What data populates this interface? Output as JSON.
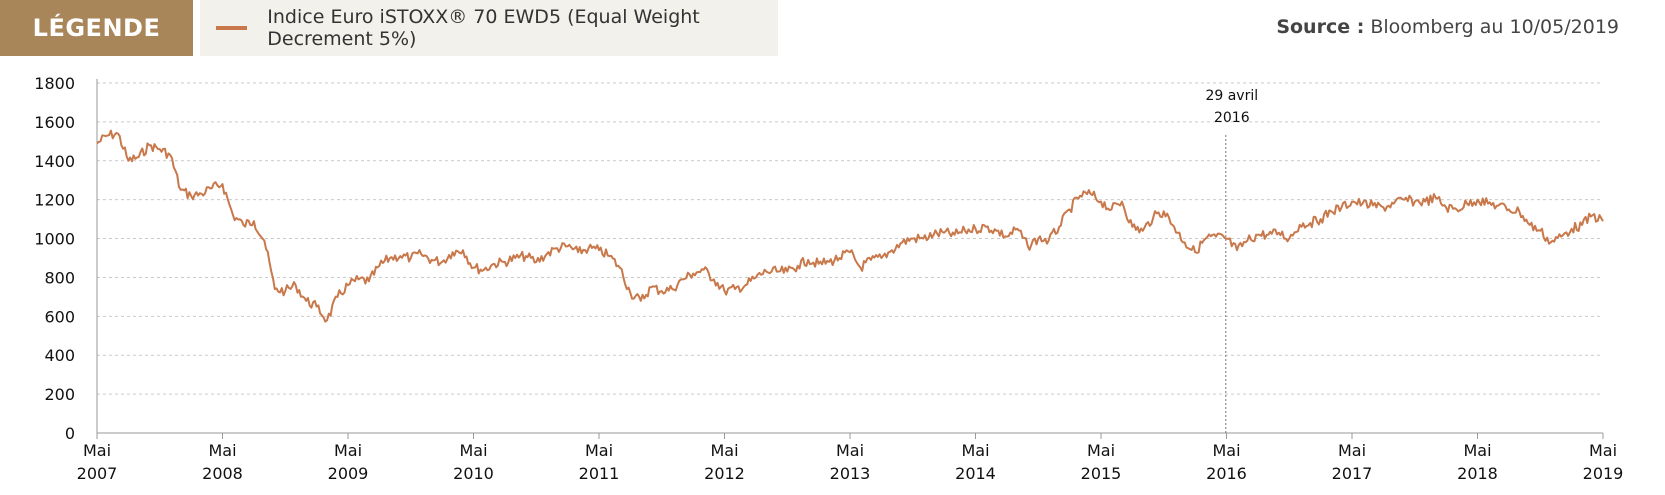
{
  "legend": {
    "tag": "LÉGENDE",
    "series_label": "Indice Euro iSTOXX® 70 EWD5  (Equal Weight Decrement 5%)"
  },
  "source": {
    "prefix": "Source :",
    "text": "Bloomberg au 10/05/2019"
  },
  "colors": {
    "series": "#c8784a",
    "tag_bg": "#a8865a",
    "grid": "#c9c9c9",
    "axis": "#999999"
  },
  "chart_data": {
    "type": "line",
    "title": "",
    "xlabel": "",
    "ylabel": "",
    "ylim": [
      0,
      1800
    ],
    "yticks": [
      "0",
      "200",
      "400",
      "600",
      "800",
      "1000",
      "1200",
      "1400",
      "1600",
      "1800"
    ],
    "xlim": [
      "2007-05",
      "2019-05"
    ],
    "xticks": [
      {
        "month": "Mai",
        "year": "2007"
      },
      {
        "month": "Mai",
        "year": "2008"
      },
      {
        "month": "Mai",
        "year": "2009"
      },
      {
        "month": "Mai",
        "year": "2010"
      },
      {
        "month": "Mai",
        "year": "2011"
      },
      {
        "month": "Mai",
        "year": "2012"
      },
      {
        "month": "Mai",
        "year": "2013"
      },
      {
        "month": "Mai",
        "year": "2014"
      },
      {
        "month": "Mai",
        "year": "2015"
      },
      {
        "month": "Mai",
        "year": "2016"
      },
      {
        "month": "Mai",
        "year": "2017"
      },
      {
        "month": "Mai",
        "year": "2018"
      },
      {
        "month": "Mai",
        "year": "2019"
      }
    ],
    "grid": true,
    "annotation": {
      "date": "2016-04-29",
      "line1": "29 avril",
      "line2": "2016"
    },
    "series": [
      {
        "name": "Indice Euro iSTOXX® 70 EWD5  (Equal Weight Decrement 5%)",
        "points": [
          [
            "2007-05",
            1490
          ],
          [
            "2007-06",
            1530
          ],
          [
            "2007-07",
            1540
          ],
          [
            "2007-08",
            1400
          ],
          [
            "2007-09",
            1420
          ],
          [
            "2007-10",
            1480
          ],
          [
            "2007-11",
            1460
          ],
          [
            "2007-12",
            1430
          ],
          [
            "2008-01",
            1250
          ],
          [
            "2008-02",
            1220
          ],
          [
            "2008-03",
            1230
          ],
          [
            "2008-04",
            1260
          ],
          [
            "2008-05",
            1280
          ],
          [
            "2008-06",
            1120
          ],
          [
            "2008-07",
            1070
          ],
          [
            "2008-08",
            1090
          ],
          [
            "2008-09",
            990
          ],
          [
            "2008-10",
            740
          ],
          [
            "2008-11",
            730
          ],
          [
            "2008-12",
            760
          ],
          [
            "2009-01",
            680
          ],
          [
            "2009-02",
            650
          ],
          [
            "2009-03",
            580
          ],
          [
            "2009-04",
            700
          ],
          [
            "2009-05",
            760
          ],
          [
            "2009-06",
            790
          ],
          [
            "2009-07",
            780
          ],
          [
            "2009-08",
            860
          ],
          [
            "2009-09",
            900
          ],
          [
            "2009-10",
            910
          ],
          [
            "2009-11",
            900
          ],
          [
            "2009-12",
            920
          ],
          [
            "2010-01",
            890
          ],
          [
            "2010-02",
            880
          ],
          [
            "2010-03",
            930
          ],
          [
            "2010-04",
            940
          ],
          [
            "2010-05",
            850
          ],
          [
            "2010-06",
            840
          ],
          [
            "2010-07",
            870
          ],
          [
            "2010-08",
            880
          ],
          [
            "2010-09",
            900
          ],
          [
            "2010-10",
            910
          ],
          [
            "2010-11",
            880
          ],
          [
            "2010-12",
            920
          ],
          [
            "2011-01",
            950
          ],
          [
            "2011-02",
            960
          ],
          [
            "2011-03",
            930
          ],
          [
            "2011-04",
            950
          ],
          [
            "2011-05",
            940
          ],
          [
            "2011-06",
            910
          ],
          [
            "2011-07",
            850
          ],
          [
            "2011-08",
            720
          ],
          [
            "2011-09",
            680
          ],
          [
            "2011-10",
            750
          ],
          [
            "2011-11",
            730
          ],
          [
            "2011-12",
            740
          ],
          [
            "2012-01",
            790
          ],
          [
            "2012-02",
            820
          ],
          [
            "2012-03",
            840
          ],
          [
            "2012-04",
            790
          ],
          [
            "2012-05",
            730
          ],
          [
            "2012-06",
            740
          ],
          [
            "2012-07",
            760
          ],
          [
            "2012-08",
            800
          ],
          [
            "2012-09",
            830
          ],
          [
            "2012-10",
            830
          ],
          [
            "2012-11",
            830
          ],
          [
            "2012-12",
            860
          ],
          [
            "2013-01",
            890
          ],
          [
            "2013-02",
            870
          ],
          [
            "2013-03",
            880
          ],
          [
            "2013-04",
            900
          ],
          [
            "2013-05",
            930
          ],
          [
            "2013-06",
            850
          ],
          [
            "2013-07",
            890
          ],
          [
            "2013-08",
            900
          ],
          [
            "2013-09",
            940
          ],
          [
            "2013-10",
            980
          ],
          [
            "2013-11",
            1000
          ],
          [
            "2013-12",
            1000
          ],
          [
            "2014-01",
            1020
          ],
          [
            "2014-02",
            1030
          ],
          [
            "2014-03",
            1020
          ],
          [
            "2014-04",
            1040
          ],
          [
            "2014-05",
            1050
          ],
          [
            "2014-06",
            1060
          ],
          [
            "2014-07",
            1040
          ],
          [
            "2014-08",
            1010
          ],
          [
            "2014-09",
            1050
          ],
          [
            "2014-10",
            960
          ],
          [
            "2014-11",
            1000
          ],
          [
            "2014-12",
            990
          ],
          [
            "2015-01",
            1060
          ],
          [
            "2015-02",
            1150
          ],
          [
            "2015-03",
            1220
          ],
          [
            "2015-04",
            1230
          ],
          [
            "2015-05",
            1190
          ],
          [
            "2015-06",
            1150
          ],
          [
            "2015-07",
            1190
          ],
          [
            "2015-08",
            1060
          ],
          [
            "2015-09",
            1040
          ],
          [
            "2015-10",
            1110
          ],
          [
            "2015-11",
            1140
          ],
          [
            "2015-12",
            1060
          ],
          [
            "2016-01",
            980
          ],
          [
            "2016-02",
            930
          ],
          [
            "2016-03",
            1000
          ],
          [
            "2016-04",
            1010
          ],
          [
            "2016-05",
            1000
          ],
          [
            "2016-06",
            940
          ],
          [
            "2016-07",
            990
          ],
          [
            "2016-08",
            1020
          ],
          [
            "2016-09",
            1020
          ],
          [
            "2016-10",
            1030
          ],
          [
            "2016-11",
            1000
          ],
          [
            "2016-12",
            1070
          ],
          [
            "2017-01",
            1080
          ],
          [
            "2017-02",
            1100
          ],
          [
            "2017-03",
            1140
          ],
          [
            "2017-04",
            1160
          ],
          [
            "2017-05",
            1190
          ],
          [
            "2017-06",
            1180
          ],
          [
            "2017-07",
            1170
          ],
          [
            "2017-08",
            1160
          ],
          [
            "2017-09",
            1180
          ],
          [
            "2017-10",
            1200
          ],
          [
            "2017-11",
            1190
          ],
          [
            "2017-12",
            1190
          ],
          [
            "2018-01",
            1210
          ],
          [
            "2018-02",
            1160
          ],
          [
            "2018-03",
            1150
          ],
          [
            "2018-04",
            1180
          ],
          [
            "2018-05",
            1200
          ],
          [
            "2018-06",
            1180
          ],
          [
            "2018-07",
            1170
          ],
          [
            "2018-08",
            1150
          ],
          [
            "2018-09",
            1140
          ],
          [
            "2018-10",
            1070
          ],
          [
            "2018-11",
            1040
          ],
          [
            "2018-12",
            980
          ],
          [
            "2019-01",
            1010
          ],
          [
            "2019-02",
            1050
          ],
          [
            "2019-03",
            1070
          ],
          [
            "2019-04",
            1120
          ],
          [
            "2019-05",
            1090
          ]
        ]
      }
    ]
  }
}
